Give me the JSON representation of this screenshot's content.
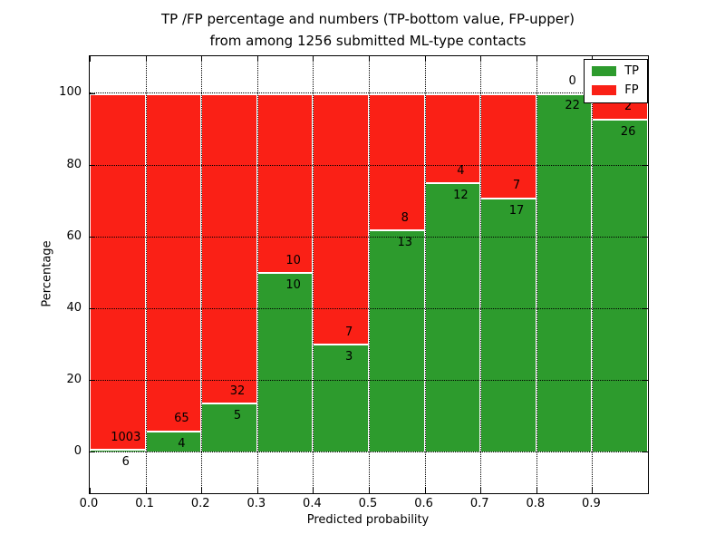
{
  "chart_data": {
    "type": "bar",
    "stacked": true,
    "percentage_stack": true,
    "title_line1": "TP /FP percentage and numbers (TP-bottom value, FP-upper)",
    "title_line2": "from among 1256 submitted ML-type contacts",
    "xlabel": "Predicted probability",
    "ylabel": "Percentage",
    "total_submitted": 1256,
    "xlim": [
      0.0,
      1.0
    ],
    "ylim": [
      -11.5,
      110.5
    ],
    "bin_width": 0.1,
    "categories": [
      "0.0-0.1",
      "0.1-0.2",
      "0.2-0.3",
      "0.3-0.4",
      "0.4-0.5",
      "0.5-0.6",
      "0.6-0.7",
      "0.7-0.8",
      "0.8-0.9",
      "0.9-1.0"
    ],
    "x_tick_labels": [
      "0.0",
      "0.1",
      "0.2",
      "0.3",
      "0.4",
      "0.5",
      "0.6",
      "0.7",
      "0.8",
      "0.9"
    ],
    "y_tick_values": [
      0,
      20,
      40,
      60,
      80,
      100
    ],
    "y_tick_labels": [
      "0",
      "20",
      "40",
      "60",
      "80",
      "100"
    ],
    "grid": "dotted",
    "series": [
      {
        "name": "TP",
        "color": "#2d9b2d",
        "counts": [
          6,
          4,
          5,
          10,
          3,
          13,
          12,
          17,
          22,
          26
        ]
      },
      {
        "name": "FP",
        "color": "#fa2016",
        "counts": [
          1003,
          65,
          32,
          10,
          7,
          8,
          4,
          7,
          0,
          2
        ]
      }
    ],
    "tp_percent": [
      0.59,
      5.8,
      13.51,
      50.0,
      30.0,
      61.9,
      75.0,
      70.83,
      100.0,
      92.86
    ],
    "bar_edge_color": "#ffffff",
    "axes_color": "#000000",
    "legend": {
      "position": "upper right",
      "entries": [
        {
          "label": "TP",
          "color": "#2d9b2d"
        },
        {
          "label": "FP",
          "color": "#fa2016"
        }
      ]
    }
  }
}
